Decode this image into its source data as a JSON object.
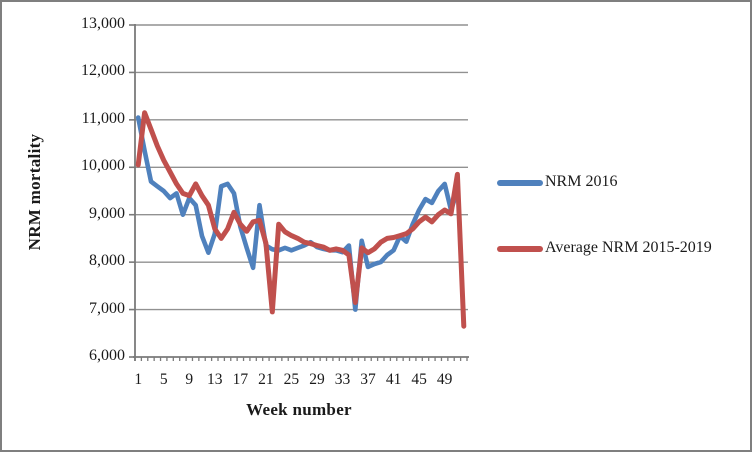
{
  "chart_data": {
    "type": "line",
    "title": "",
    "xlabel": "Week number",
    "ylabel": "NRM mortality",
    "x": [
      1,
      2,
      3,
      4,
      5,
      6,
      7,
      8,
      9,
      10,
      11,
      12,
      13,
      14,
      15,
      16,
      17,
      18,
      19,
      20,
      21,
      22,
      23,
      24,
      25,
      26,
      27,
      28,
      29,
      30,
      31,
      32,
      33,
      34,
      35,
      36,
      37,
      38,
      39,
      40,
      41,
      42,
      43,
      44,
      45,
      46,
      47,
      48,
      49,
      50,
      51,
      52
    ],
    "x_tick_labels": [
      "1",
      "5",
      "9",
      "13",
      "17",
      "21",
      "25",
      "29",
      "33",
      "37",
      "41",
      "45",
      "49"
    ],
    "x_tick_weeks": [
      1,
      5,
      9,
      13,
      17,
      21,
      25,
      29,
      33,
      37,
      41,
      45,
      49
    ],
    "y_ticks": [
      6000,
      7000,
      8000,
      9000,
      10000,
      11000,
      12000,
      13000
    ],
    "y_tick_labels": [
      "6,000",
      "7,000",
      "8,000",
      "9,000",
      "10,000",
      "11,000",
      "12,000",
      "13,000"
    ],
    "ylim": [
      6000,
      13000
    ],
    "grid": "horizontal-gridlines-on",
    "legend_position": "right",
    "axis_color": "#7a7a7a",
    "gridline_color": "#919191",
    "series": [
      {
        "name": "NRM 2016",
        "color": "#4F81BD",
        "values": [
          11050,
          10350,
          9700,
          9600,
          9500,
          9350,
          9450,
          9000,
          9350,
          9200,
          8550,
          8200,
          8600,
          9600,
          9650,
          9450,
          8750,
          8300,
          7880,
          9200,
          8350,
          8270,
          8250,
          8300,
          8250,
          8300,
          8350,
          8420,
          8320,
          8280,
          8250,
          8250,
          8210,
          8350,
          7000,
          8450,
          7900,
          7960,
          8000,
          8150,
          8250,
          8550,
          8430,
          8800,
          9100,
          9330,
          9250,
          9500,
          9650,
          9100,
          9500,
          null
        ]
      },
      {
        "name": "Average NRM 2015-2019",
        "color": "#C0504D",
        "values": [
          10050,
          11150,
          10800,
          10450,
          10150,
          9900,
          9650,
          9450,
          9400,
          9650,
          9400,
          9200,
          8700,
          8500,
          8700,
          9050,
          8800,
          8650,
          8850,
          8880,
          8400,
          6950,
          8800,
          8640,
          8560,
          8500,
          8420,
          8390,
          8350,
          8320,
          8250,
          8280,
          8250,
          8150,
          7150,
          8300,
          8200,
          8280,
          8420,
          8500,
          8520,
          8560,
          8600,
          8700,
          8850,
          8950,
          8850,
          9000,
          9100,
          9020,
          9850,
          6650
        ]
      }
    ]
  },
  "legend": {
    "items": [
      {
        "label": "NRM 2016"
      },
      {
        "label": "Average NRM 2015-2019"
      }
    ]
  }
}
